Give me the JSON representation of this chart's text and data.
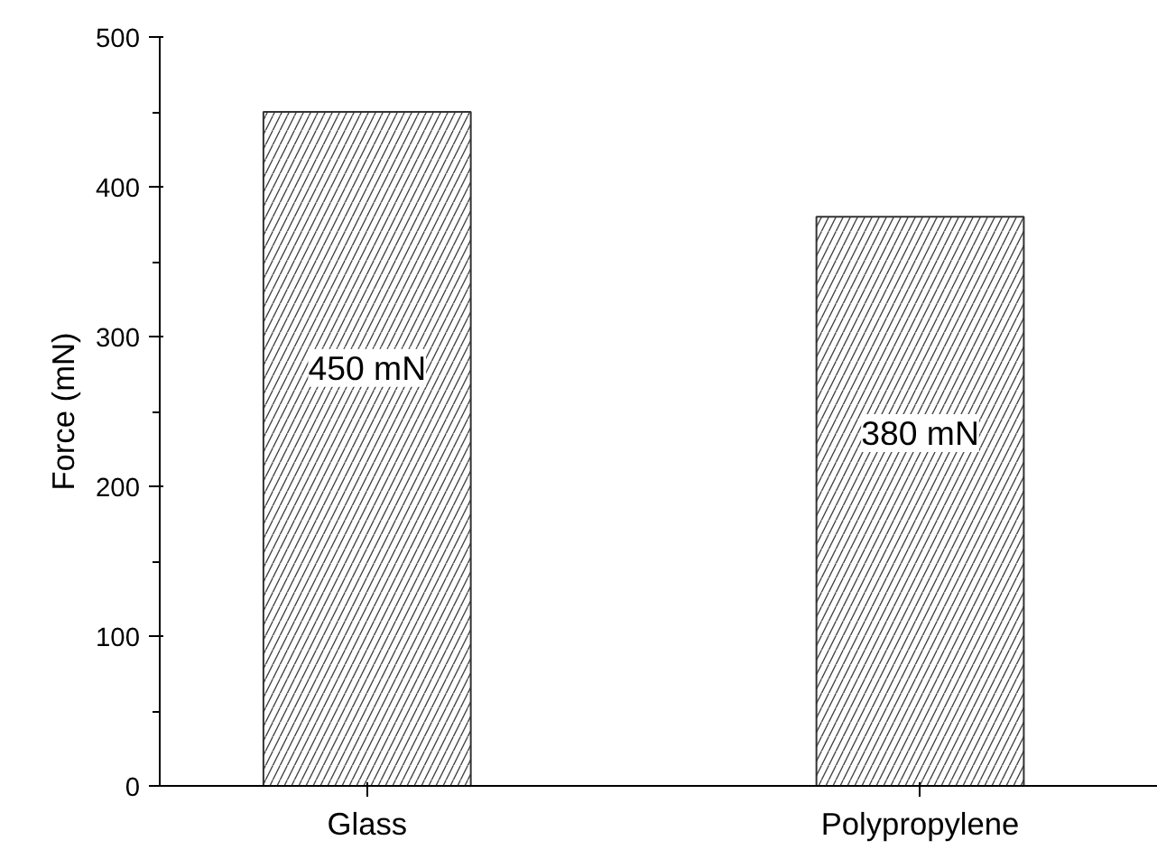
{
  "chart_data": {
    "type": "bar",
    "ylabel": "Force (mN)",
    "categories": [
      "Glass",
      "Polypropylene"
    ],
    "values": [
      450,
      380
    ],
    "value_labels": [
      "450 mN",
      "380 mN"
    ],
    "color": "#ffffff",
    "ylim": [
      0,
      500
    ],
    "yticks": [
      0,
      100,
      200,
      300,
      400,
      500
    ],
    "grid": false
  }
}
